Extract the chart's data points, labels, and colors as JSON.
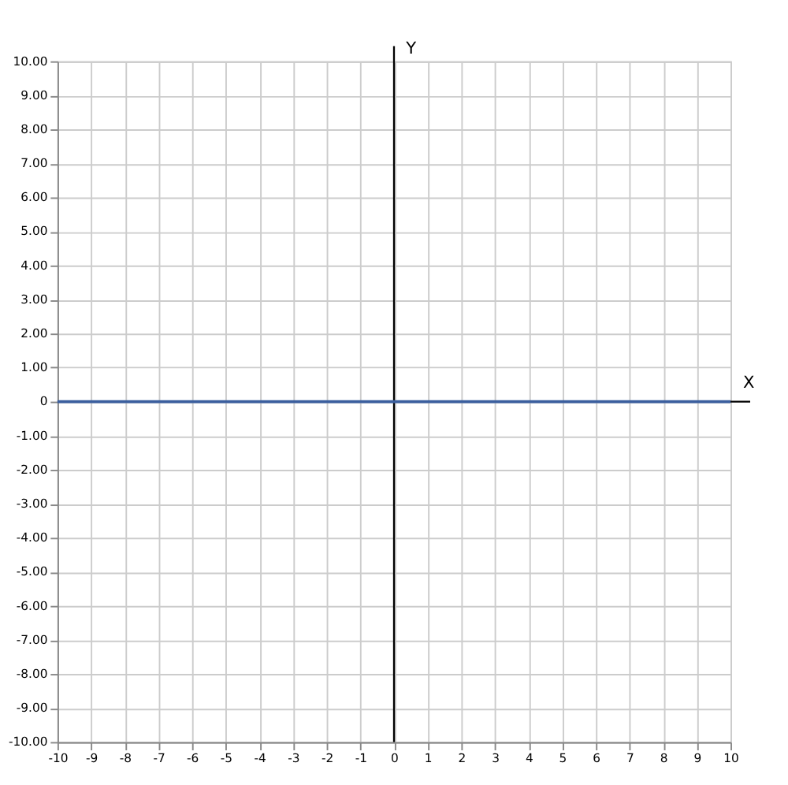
{
  "chart_data": {
    "type": "line",
    "xlabel": "X",
    "ylabel": "Y",
    "x": [
      -10,
      10
    ],
    "series": [
      {
        "color": "#3b5f9e",
        "values": [
          0,
          0
        ]
      }
    ],
    "xlim": [
      -10,
      10
    ],
    "ylim": [
      -10,
      10
    ],
    "xticks": [
      -10,
      -9,
      -8,
      -7,
      -6,
      -5,
      -4,
      -3,
      -2,
      -1,
      0,
      1,
      2,
      3,
      4,
      5,
      6,
      7,
      8,
      9,
      10
    ],
    "yticks": [
      {
        "value": 10,
        "label": "10.00"
      },
      {
        "value": 9,
        "label": "9.00"
      },
      {
        "value": 8,
        "label": "8.00"
      },
      {
        "value": 7,
        "label": "7.00"
      },
      {
        "value": 6,
        "label": "6.00"
      },
      {
        "value": 5,
        "label": "5.00"
      },
      {
        "value": 4,
        "label": "4.00"
      },
      {
        "value": 3,
        "label": "3.00"
      },
      {
        "value": 2,
        "label": "2.00"
      },
      {
        "value": 1,
        "label": "1.00"
      },
      0,
      {
        "value": -1,
        "label": "-1.00"
      },
      {
        "value": -2,
        "label": "-2.00"
      },
      {
        "value": -3,
        "label": "-3.00"
      },
      {
        "value": -4,
        "label": "-4.00"
      },
      {
        "value": -5,
        "label": "-5.00"
      },
      {
        "value": -6,
        "label": "-6.00"
      },
      {
        "value": -7,
        "label": "-7.00"
      },
      {
        "value": -8,
        "label": "-8.00"
      },
      {
        "value": -9,
        "label": "-9.00"
      },
      {
        "value": -10,
        "label": "-10.00"
      }
    ],
    "grid": true,
    "marker": "none",
    "line_style": "solid"
  }
}
